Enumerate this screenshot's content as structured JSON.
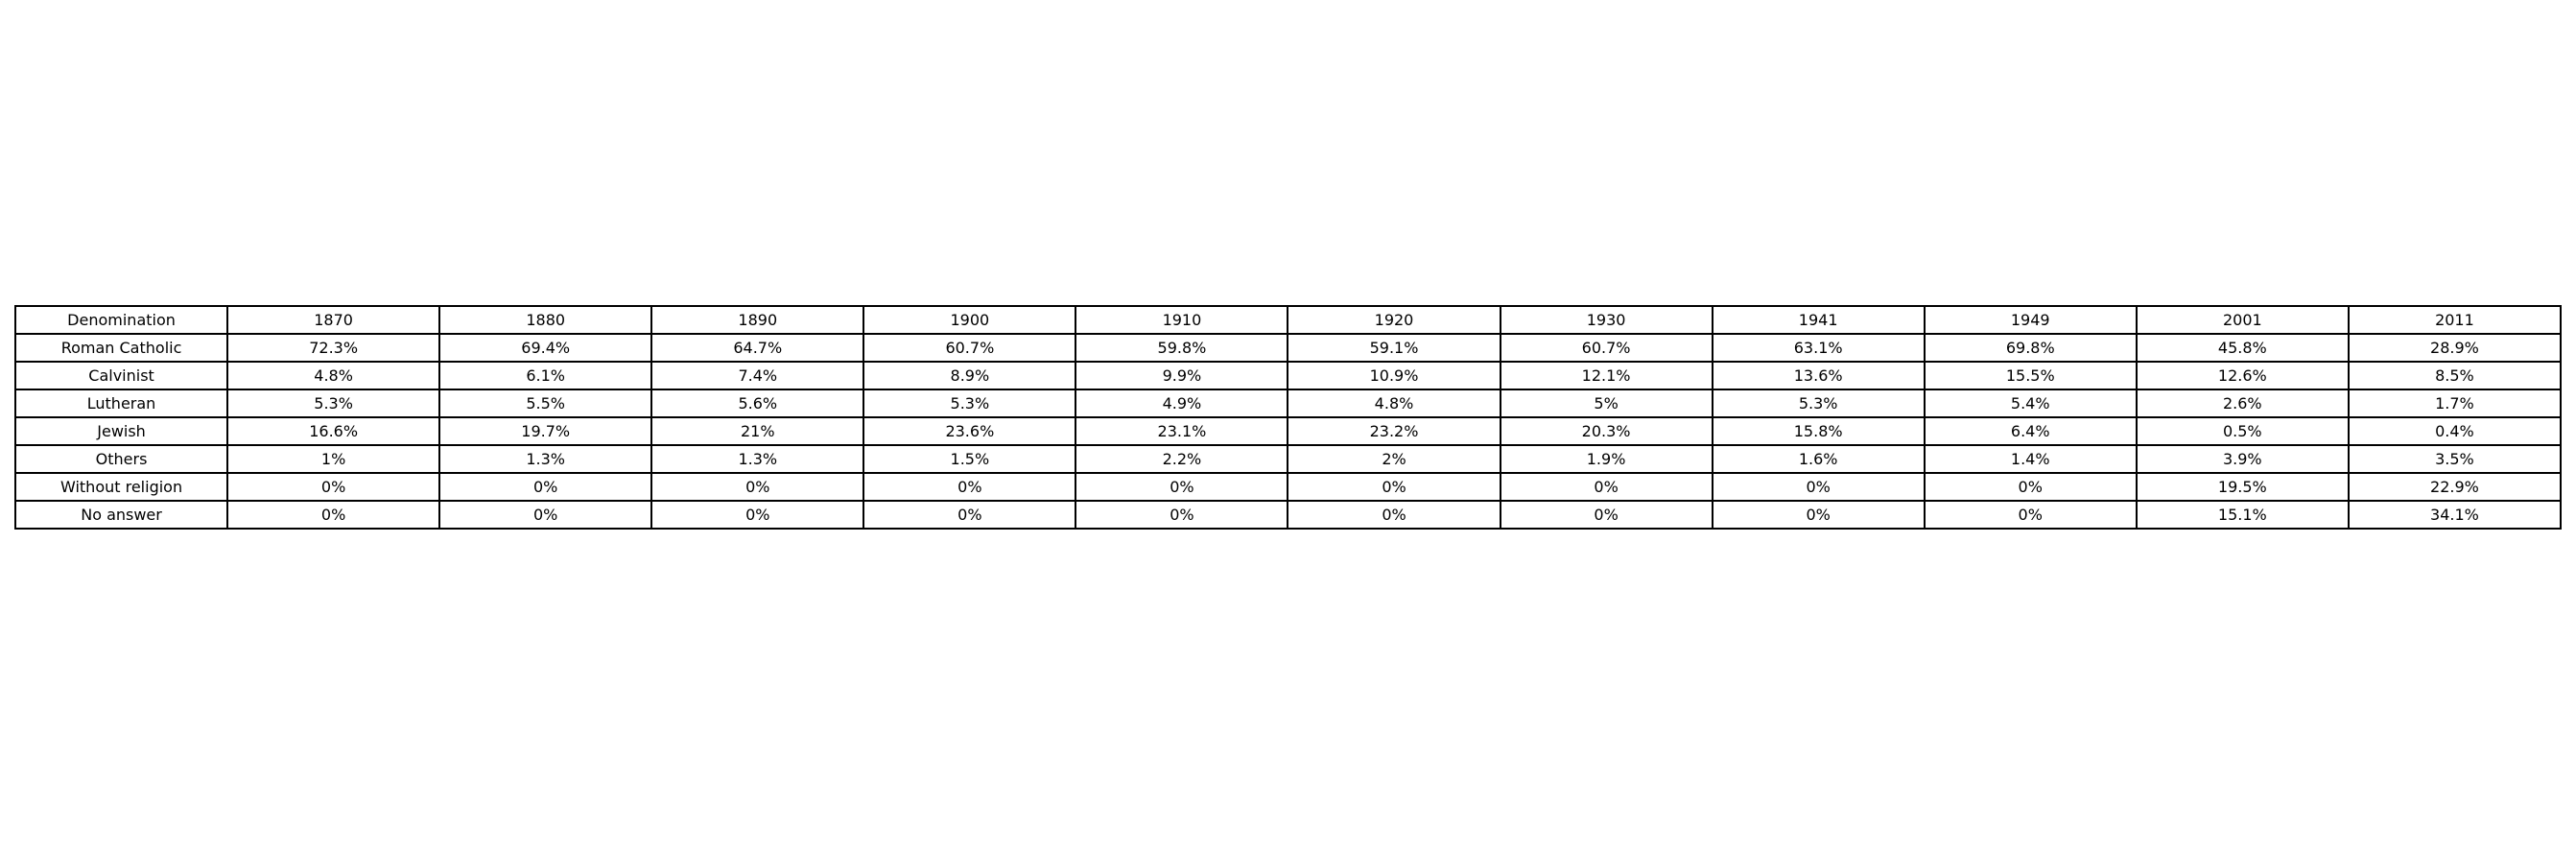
{
  "chart_data": {
    "type": "table",
    "columns": [
      "Denomination",
      "1870",
      "1880",
      "1890",
      "1900",
      "1910",
      "1920",
      "1930",
      "1941",
      "1949",
      "2001",
      "2011"
    ],
    "rows": [
      [
        "Roman Catholic",
        "72.3%",
        "69.4%",
        "64.7%",
        "60.7%",
        "59.8%",
        "59.1%",
        "60.7%",
        "63.1%",
        "69.8%",
        "45.8%",
        "28.9%"
      ],
      [
        "Calvinist",
        "4.8%",
        "6.1%",
        "7.4%",
        "8.9%",
        "9.9%",
        "10.9%",
        "12.1%",
        "13.6%",
        "15.5%",
        "12.6%",
        "8.5%"
      ],
      [
        "Lutheran",
        "5.3%",
        "5.5%",
        "5.6%",
        "5.3%",
        "4.9%",
        "4.8%",
        "5%",
        "5.3%",
        "5.4%",
        "2.6%",
        "1.7%"
      ],
      [
        "Jewish",
        "16.6%",
        "19.7%",
        "21%",
        "23.6%",
        "23.1%",
        "23.2%",
        "20.3%",
        "15.8%",
        "6.4%",
        "0.5%",
        "0.4%"
      ],
      [
        "Others",
        "1%",
        "1.3%",
        "1.3%",
        "1.5%",
        "2.2%",
        "2%",
        "1.9%",
        "1.6%",
        "1.4%",
        "3.9%",
        "3.5%"
      ],
      [
        "Without religion",
        "0%",
        "0%",
        "0%",
        "0%",
        "0%",
        "0%",
        "0%",
        "0%",
        "0%",
        "19.5%",
        "22.9%"
      ],
      [
        "No answer",
        "0%",
        "0%",
        "0%",
        "0%",
        "0%",
        "0%",
        "0%",
        "0%",
        "0%",
        "15.1%",
        "34.1%"
      ]
    ]
  }
}
